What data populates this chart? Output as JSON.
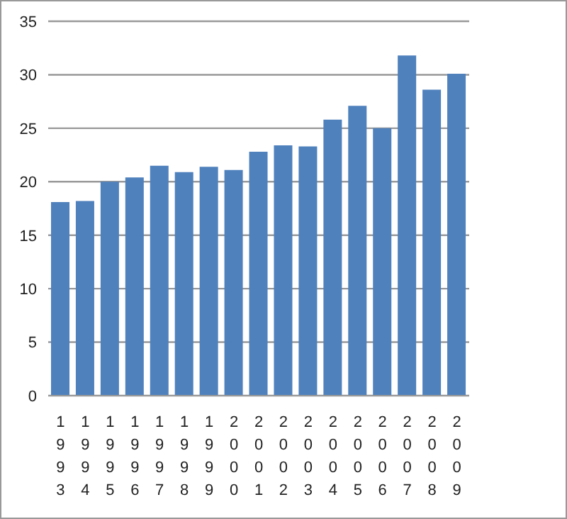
{
  "chart_data": {
    "type": "bar",
    "categories": [
      "1993",
      "1994",
      "1995",
      "1996",
      "1997",
      "1998",
      "1999",
      "2000",
      "2001",
      "2002",
      "2003",
      "2004",
      "2005",
      "2006",
      "2007",
      "2008",
      "2009"
    ],
    "values": [
      18.1,
      18.2,
      20.0,
      20.4,
      21.5,
      20.9,
      21.4,
      21.1,
      22.8,
      23.4,
      23.3,
      25.8,
      27.1,
      25.0,
      31.8,
      28.6,
      30.1
    ],
    "color": "#4f81bd",
    "ylim": [
      0,
      35
    ],
    "yticks": [
      0,
      5,
      10,
      15,
      20,
      25,
      30,
      35
    ],
    "grid": "y",
    "legend": false
  }
}
